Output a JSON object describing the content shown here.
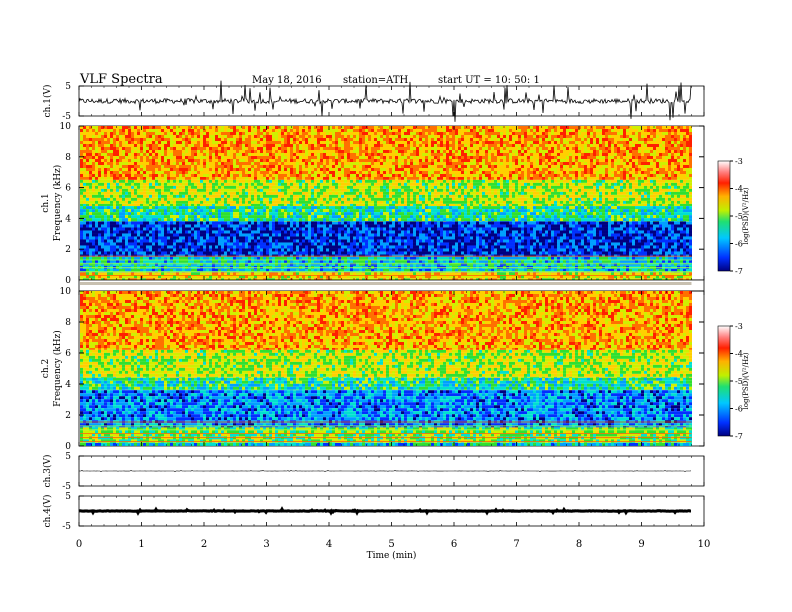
{
  "header": {
    "title": "VLF  Spectra",
    "date": "May 18, 2016",
    "station": "station=ATH",
    "start": "start  UT  =   10: 50: 1"
  },
  "chart_data": [
    {
      "type": "line",
      "panel": "ch1-waveform",
      "ylabel": "ch.1(V)",
      "yticks": [
        "5",
        "-5"
      ],
      "ylim": [
        -5,
        5
      ],
      "note": "dense noisy waveform centred near 0 V, bursts up to about 4 V",
      "xlim": [
        0,
        10
      ]
    },
    {
      "type": "heatmap",
      "panel": "ch1-spectrogram",
      "ylabel": "Frequency  (kHz)",
      "channel_label": "ch.1",
      "yticks": [
        "0",
        "2",
        "4",
        "6",
        "8",
        "10"
      ],
      "ylim": [
        0,
        10
      ],
      "xlim": [
        0,
        9.8
      ],
      "colorbar": {
        "ticks": [
          "-3",
          "-4",
          "-5",
          "-6",
          "-7"
        ],
        "label": "log(PSD)(V²/Hz)",
        "range": [
          -7,
          -3
        ]
      },
      "bands": [
        {
          "from": 10,
          "to": 6.5,
          "level": -3.9
        },
        {
          "from": 6.5,
          "to": 4.8,
          "level": -4.6
        },
        {
          "from": 4.8,
          "to": 3.8,
          "level": -5.3
        },
        {
          "from": 3.8,
          "to": 1.5,
          "level": -6.4
        },
        {
          "from": 1.5,
          "to": 0.5,
          "level": -5.6
        },
        {
          "from": 0.5,
          "to": 0.0,
          "level": -4.3
        }
      ]
    },
    {
      "type": "heatmap",
      "panel": "ch2-spectrogram",
      "ylabel": "Frequency  (kHz)",
      "channel_label": "ch.2",
      "yticks": [
        "0",
        "2",
        "4",
        "6",
        "8",
        "10"
      ],
      "ylim": [
        0,
        10
      ],
      "xlim": [
        0,
        9.8
      ],
      "colorbar": {
        "ticks": [
          "-3",
          "-4",
          "-5",
          "-6",
          "-7"
        ],
        "label": "log(PSD)(V²/Hz)",
        "range": [
          -7,
          -3
        ]
      },
      "bands": [
        {
          "from": 10,
          "to": 6.2,
          "level": -3.9
        },
        {
          "from": 6.2,
          "to": 4.4,
          "level": -4.6
        },
        {
          "from": 4.4,
          "to": 3.6,
          "level": -5.3
        },
        {
          "from": 3.6,
          "to": 1.2,
          "level": -6.0
        },
        {
          "from": 1.2,
          "to": 0.2,
          "level": -4.9
        },
        {
          "from": 0.2,
          "to": 0.0,
          "level": -5.6
        }
      ]
    },
    {
      "type": "line",
      "panel": "ch3-waveform",
      "ylabel": "ch.3(V)",
      "yticks": [
        "5",
        "-5"
      ],
      "ylim": [
        -5,
        5
      ],
      "note": "flat trace near 0 V",
      "xlim": [
        0,
        10
      ]
    },
    {
      "type": "line",
      "panel": "ch4-waveform",
      "ylabel": "ch.4(V)",
      "yticks": [
        "5",
        "-5"
      ],
      "ylim": [
        -5,
        5
      ],
      "note": "thick flat trace near 0 V",
      "xlim": [
        0,
        10
      ]
    },
    {
      "type": "axis",
      "panel": "time-axis",
      "xlabel": "Time  (min)",
      "xticks": [
        "0",
        "1",
        "2",
        "3",
        "4",
        "5",
        "6",
        "7",
        "8",
        "9",
        "10"
      ],
      "xlim": [
        0,
        10
      ]
    }
  ],
  "palette": [
    "#000080",
    "#0030ff",
    "#00a0ff",
    "#00e0d0",
    "#30e030",
    "#d0f000",
    "#ffd000",
    "#ff7000",
    "#ff2000",
    "#ff8080",
    "#ffffff"
  ]
}
